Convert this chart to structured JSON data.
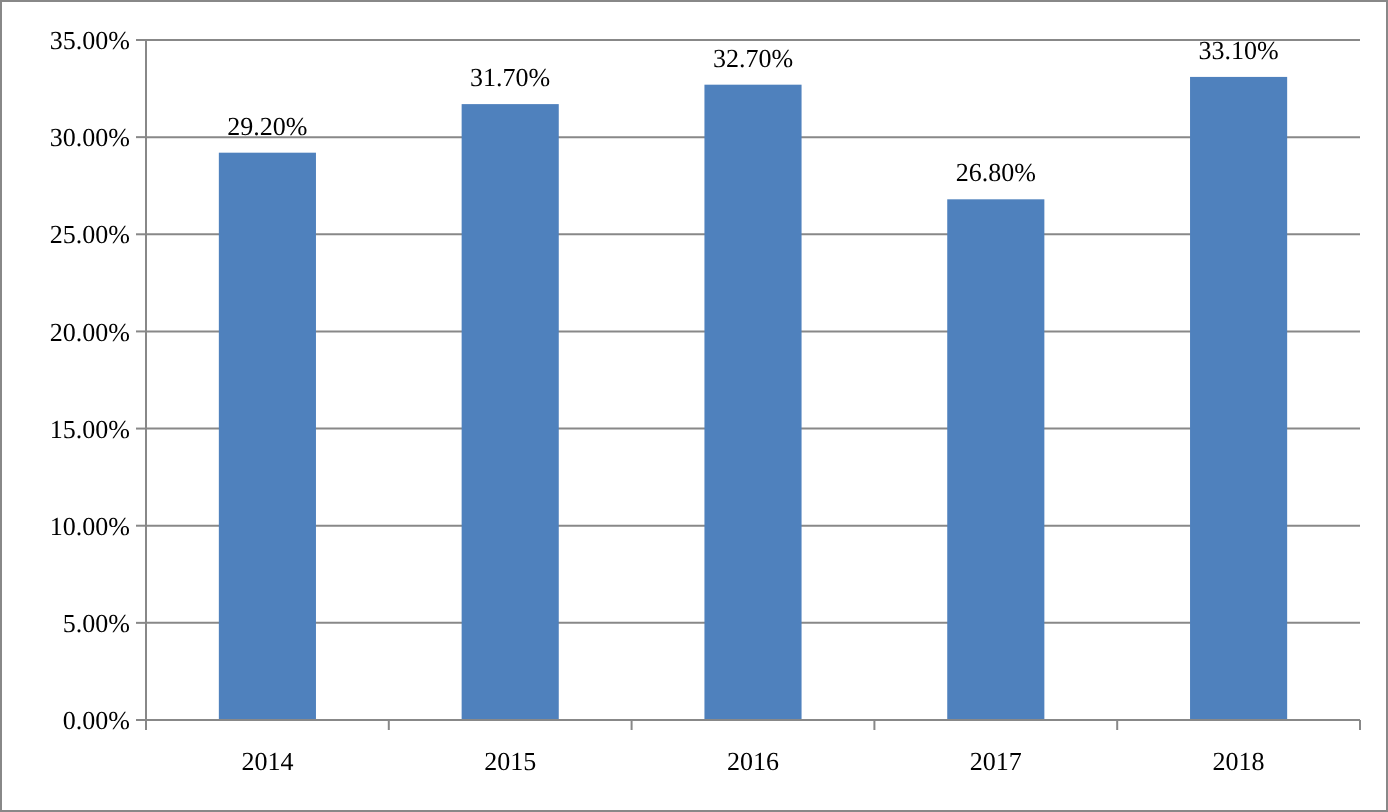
{
  "chart_data": {
    "type": "bar",
    "categories": [
      "2014",
      "2015",
      "2016",
      "2017",
      "2018"
    ],
    "values": [
      29.2,
      31.7,
      32.7,
      26.8,
      33.1
    ],
    "value_labels": [
      "29.20%",
      "31.70%",
      "32.70%",
      "26.80%",
      "33.10%"
    ],
    "color": "#4f81bd",
    "ylim": [
      0,
      35
    ],
    "yticks": [
      {
        "value": 0,
        "label": "0.00%"
      },
      {
        "value": 5,
        "label": "5.00%"
      },
      {
        "value": 10,
        "label": "10.00%"
      },
      {
        "value": 15,
        "label": "15.00%"
      },
      {
        "value": 20,
        "label": "20.00%"
      },
      {
        "value": 25,
        "label": "25.00%"
      },
      {
        "value": 30,
        "label": "30.00%"
      },
      {
        "value": 35,
        "label": "35.00%"
      }
    ],
    "grid": "y"
  }
}
